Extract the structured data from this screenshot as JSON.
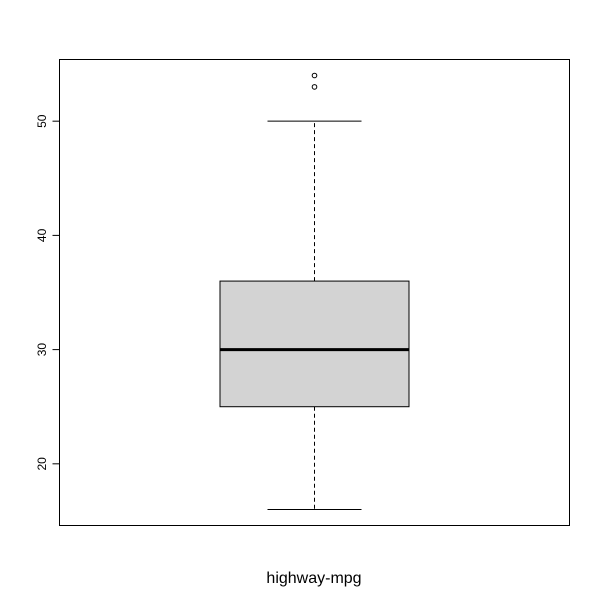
{
  "chart_data": {
    "type": "boxplot",
    "title": "",
    "xlabel": "highway-mpg",
    "ylabel": "",
    "ylim": [
      14.6,
      55.4
    ],
    "yticks": [
      20,
      30,
      40,
      50
    ],
    "grid": false,
    "series": [
      {
        "whisker_low": 16,
        "q1": 25,
        "median": 30,
        "q3": 36,
        "whisker_high": 50,
        "outliers": [
          53,
          54
        ]
      }
    ],
    "colors": {
      "box_fill": "#d3d3d3",
      "line": "#000000",
      "background": "#ffffff"
    }
  }
}
